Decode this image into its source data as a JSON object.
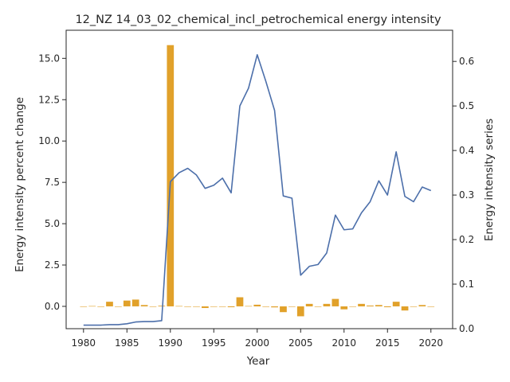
{
  "chart_data": {
    "type": "bar+line",
    "title": "12_NZ 14_03_02_chemical_incl_petrochemical energy intensity",
    "xlabel": "Year",
    "ylabel_left": "Energy intensity percent change",
    "ylabel_right": "Energy intensity series",
    "xlim": [
      1978,
      2022.5
    ],
    "ylim_left": [
      -1.35,
      16.7
    ],
    "ylim_right": [
      0.0,
      0.67
    ],
    "x_ticks": [
      1980,
      1985,
      1990,
      1995,
      2000,
      2005,
      2010,
      2015,
      2020
    ],
    "y_left_ticks": [
      "0.0",
      "2.5",
      "5.0",
      "7.5",
      "10.0",
      "12.5",
      "15.0"
    ],
    "y_right_ticks": [
      "0.0",
      "0.1",
      "0.2",
      "0.3",
      "0.4",
      "0.5",
      "0.6"
    ],
    "bar_color": "#e1a12a",
    "line_color": "#4c6faa",
    "years": [
      1980,
      1981,
      1982,
      1983,
      1984,
      1985,
      1986,
      1987,
      1988,
      1989,
      1990,
      1991,
      1992,
      1993,
      1994,
      1995,
      1996,
      1997,
      1998,
      1999,
      2000,
      2001,
      2002,
      2003,
      2004,
      2005,
      2006,
      2007,
      2008,
      2009,
      2010,
      2011,
      2012,
      2013,
      2014,
      2015,
      2016,
      2017,
      2018,
      2019,
      2020
    ],
    "percent_change": [
      0.0,
      0.02,
      -0.03,
      0.28,
      -0.02,
      0.35,
      0.41,
      0.08,
      -0.02,
      0.04,
      15.8,
      0.02,
      0.0,
      0.0,
      -0.1,
      0.0,
      0.0,
      -0.05,
      0.55,
      0.02,
      0.1,
      -0.03,
      -0.06,
      -0.35,
      0.0,
      -0.6,
      0.15,
      0.0,
      0.15,
      0.45,
      -0.18,
      0.0,
      0.15,
      0.05,
      0.08,
      -0.05,
      0.28,
      -0.25,
      0.0,
      0.08,
      0.0
    ],
    "series": [
      0.008,
      0.008,
      0.008,
      0.009,
      0.009,
      0.011,
      0.015,
      0.016,
      0.016,
      0.018,
      0.33,
      0.35,
      0.36,
      0.345,
      0.315,
      0.322,
      0.338,
      0.305,
      0.5,
      0.54,
      0.615,
      0.555,
      0.49,
      0.298,
      0.293,
      0.12,
      0.14,
      0.144,
      0.17,
      0.255,
      0.222,
      0.224,
      0.26,
      0.285,
      0.332,
      0.3,
      0.397,
      0.297,
      0.285,
      0.318,
      0.31
    ]
  }
}
